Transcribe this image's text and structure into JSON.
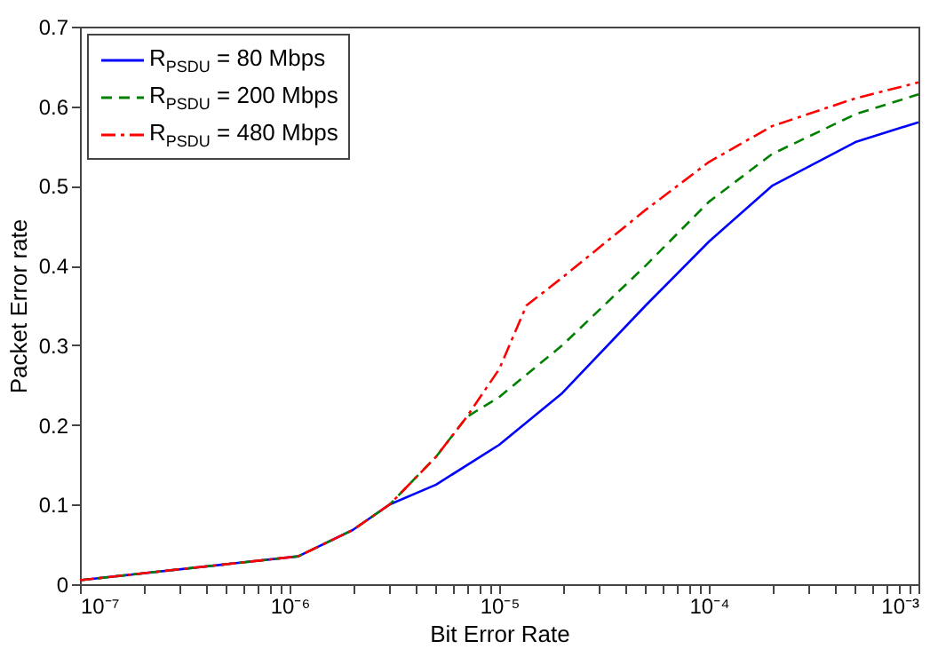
{
  "chart_data": {
    "type": "line",
    "xlabel": "Bit Error Rate",
    "ylabel": "Packet Error rate",
    "log": "x",
    "legend": "top left",
    "marker": "none",
    "xlim": [
      1e-07,
      0.001
    ],
    "ylim": [
      0,
      0.7
    ],
    "xticks": [
      {
        "value": 1e-07,
        "label": "10⁻⁷"
      },
      {
        "value": 2e-07,
        "label": null
      },
      {
        "value": 3e-07,
        "label": null
      },
      {
        "value": 4e-07,
        "label": null
      },
      {
        "value": 5e-07,
        "label": null
      },
      {
        "value": 6e-07,
        "label": null
      },
      {
        "value": 7e-07,
        "label": null
      },
      {
        "value": 8e-07,
        "label": null
      },
      {
        "value": 9e-07,
        "label": null
      },
      {
        "value": 1e-06,
        "label": "10⁻⁶"
      },
      {
        "value": 2e-06,
        "label": null
      },
      {
        "value": 3e-06,
        "label": null
      },
      {
        "value": 4e-06,
        "label": null
      },
      {
        "value": 5e-06,
        "label": null
      },
      {
        "value": 6e-06,
        "label": null
      },
      {
        "value": 7e-06,
        "label": null
      },
      {
        "value": 8e-06,
        "label": null
      },
      {
        "value": 9e-06,
        "label": null
      },
      {
        "value": 1e-05,
        "label": "10⁻⁵"
      },
      {
        "value": 2e-05,
        "label": null
      },
      {
        "value": 3e-05,
        "label": null
      },
      {
        "value": 4e-05,
        "label": null
      },
      {
        "value": 5e-05,
        "label": null
      },
      {
        "value": 6e-05,
        "label": null
      },
      {
        "value": 7e-05,
        "label": null
      },
      {
        "value": 8e-05,
        "label": null
      },
      {
        "value": 9e-05,
        "label": null
      },
      {
        "value": 0.0001,
        "label": "10⁻⁴"
      },
      {
        "value": 0.0002,
        "label": null
      },
      {
        "value": 0.0003,
        "label": null
      },
      {
        "value": 0.0004,
        "label": null
      },
      {
        "value": 0.0005,
        "label": null
      },
      {
        "value": 0.0006,
        "label": null
      },
      {
        "value": 0.0007,
        "label": null
      },
      {
        "value": 0.0008,
        "label": null
      },
      {
        "value": 0.0009,
        "label": null
      },
      {
        "value": 0.001,
        "label": "10⁻³"
      }
    ],
    "yticks": [
      0,
      0.1,
      0.2,
      0.3,
      0.4,
      0.5,
      0.6,
      0.7
    ],
    "series": [
      {
        "name": "R$_{PSDU}$ = 80 Mbps",
        "color": "#0000ff",
        "line_style": "solid",
        "x": [
          1e-07,
          1.1e-06,
          2e-06,
          3e-06,
          5e-06,
          1e-05,
          2e-05,
          5e-05,
          0.0001,
          0.0002,
          0.0005,
          0.001
        ],
        "values": [
          0.005,
          0.035,
          0.068,
          0.1,
          0.125,
          0.175,
          0.24,
          0.35,
          0.43,
          0.5,
          0.555,
          0.58
        ]
      },
      {
        "name": "R$_{PSDU}$ = 200 Mbps",
        "color": "#008000",
        "line_style": "dashed",
        "x": [
          1e-07,
          1.1e-06,
          2e-06,
          3e-06,
          5e-06,
          7e-06,
          1e-05,
          2e-05,
          5e-05,
          0.0001,
          0.0002,
          0.0005,
          0.001
        ],
        "values": [
          0.005,
          0.035,
          0.068,
          0.1,
          0.16,
          0.21,
          0.235,
          0.3,
          0.4,
          0.48,
          0.54,
          0.59,
          0.615
        ]
      },
      {
        "name": "R$_{PSDU}$ = 480 Mbps",
        "color": "#ff0000",
        "line_style": "dashdot",
        "x": [
          1e-07,
          1.1e-06,
          2e-06,
          3e-06,
          5e-06,
          7e-06,
          1e-05,
          1.35e-05,
          2e-05,
          5e-05,
          0.0001,
          0.0002,
          0.0005,
          0.001
        ],
        "values": [
          0.005,
          0.035,
          0.068,
          0.1,
          0.16,
          0.21,
          0.27,
          0.35,
          0.385,
          0.47,
          0.53,
          0.575,
          0.61,
          0.63
        ]
      }
    ]
  }
}
